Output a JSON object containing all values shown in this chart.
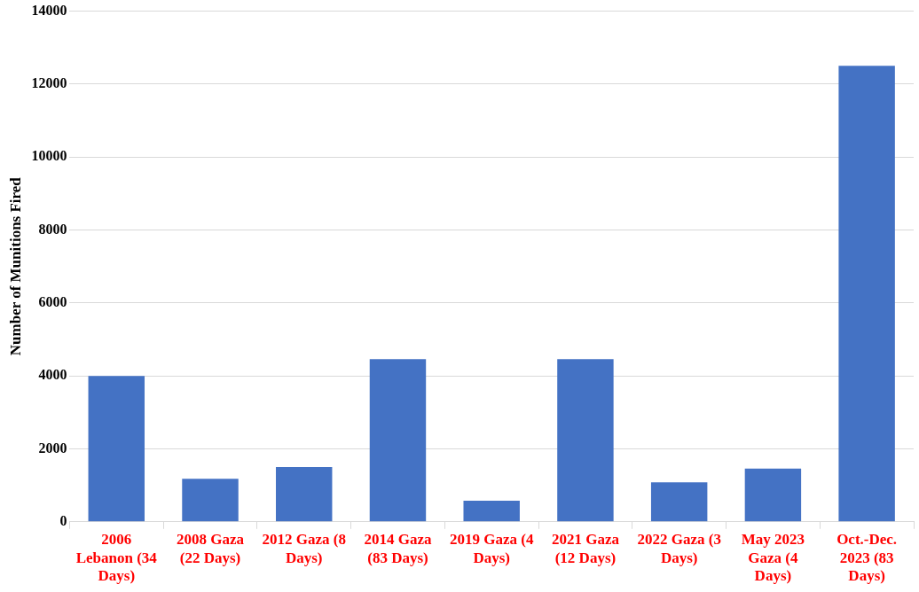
{
  "chart_data": {
    "type": "bar",
    "ylabel": "Number of Munitions Fired",
    "categories": [
      "2006 Lebanon (34 Days)",
      "2008 Gaza (22 Days)",
      "2012 Gaza (8 Days)",
      "2014 Gaza (83 Days)",
      "2019 Gaza (4 Days)",
      "2021 Gaza (12 Days)",
      "2022 Gaza (3 Days)",
      "May 2023 Gaza (4 Days)",
      "Oct.-Dec. 2023 (83 Days)"
    ],
    "values": [
      4000,
      1180,
      1500,
      4460,
      580,
      4460,
      1080,
      1460,
      12500
    ],
    "color": "#4472c4",
    "ylim": [
      0,
      14000
    ],
    "yticks": [
      0,
      2000,
      4000,
      6000,
      8000,
      10000,
      12000,
      14000
    ],
    "grid": "y",
    "legend": false
  }
}
